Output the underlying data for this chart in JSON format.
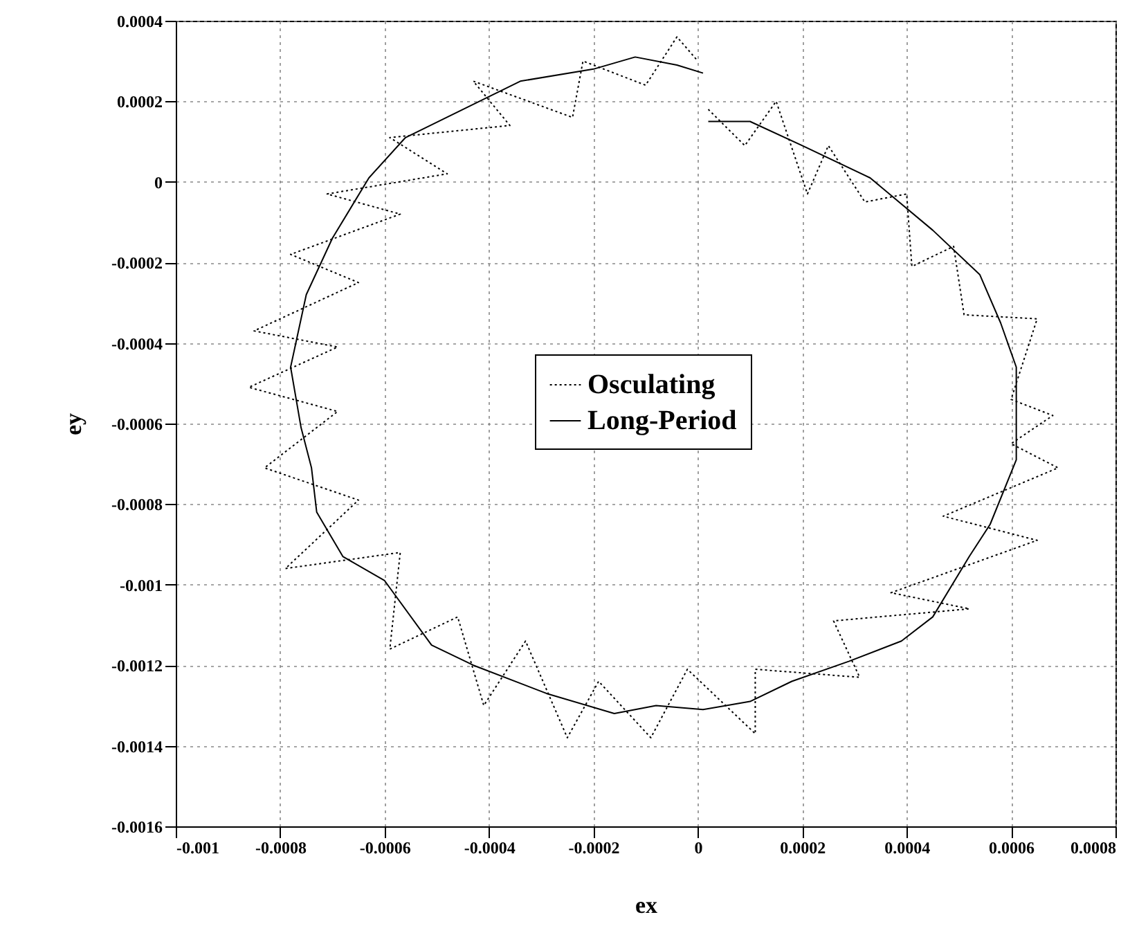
{
  "chart_data": {
    "type": "line",
    "xlabel": "ex",
    "ylabel": "ey",
    "xlim": [
      -0.001,
      0.0008
    ],
    "xticks": [
      -0.001,
      -0.0008,
      -0.0006,
      -0.0004,
      -0.0002,
      0,
      0.0002,
      0.0004,
      0.0006,
      0.0008
    ],
    "ylim": [
      -0.0016,
      0.0004
    ],
    "yticks": [
      -0.0016,
      -0.0014,
      -0.0012,
      -0.001,
      -0.0008,
      -0.0006,
      -0.0004,
      -0.0002,
      0,
      0.0002,
      0.0004
    ],
    "grid": true,
    "legend": "center",
    "marker": "none",
    "series": [
      {
        "name": "Osculating",
        "color": "#000000",
        "line_style": "dotted",
        "x": [
          2e-05,
          9e-05,
          0.00015,
          0.00021,
          0.00025,
          0.00032,
          0.0004,
          0.00041,
          0.00049,
          0.00051,
          0.00065,
          0.0006,
          0.00068,
          0.0006,
          0.00069,
          0.00047,
          0.00065,
          0.00037,
          0.00052,
          0.00026,
          0.00031,
          0.00011,
          0.00011,
          -2e-05,
          -9e-05,
          -0.00019,
          -0.00025,
          -0.00033,
          -0.00041,
          -0.00046,
          -0.00059,
          -0.00057,
          -0.00079,
          -0.00065,
          -0.00083,
          -0.00069,
          -0.00086,
          -0.00069,
          -0.00085,
          -0.00065,
          -0.00078,
          -0.00057,
          -0.00071,
          -0.00048,
          -0.00059,
          -0.00036,
          -0.00043,
          -0.00024,
          -0.00022,
          -0.0001,
          -4e-05,
          0
        ],
        "values": [
          0.00018,
          9e-05,
          0.0002,
          -3e-05,
          9e-05,
          -5e-05,
          -3e-05,
          -0.00021,
          -0.00016,
          -0.00033,
          -0.00034,
          -0.00054,
          -0.00058,
          -0.00065,
          -0.00071,
          -0.00083,
          -0.00089,
          -0.00102,
          -0.00106,
          -0.00109,
          -0.00123,
          -0.00121,
          -0.00137,
          -0.00121,
          -0.00138,
          -0.00124,
          -0.00138,
          -0.00114,
          -0.0013,
          -0.00108,
          -0.00116,
          -0.00092,
          -0.00096,
          -0.00079,
          -0.00071,
          -0.00057,
          -0.00051,
          -0.00041,
          -0.00037,
          -0.00025,
          -0.00018,
          -8e-05,
          -3e-05,
          2e-05,
          0.00011,
          0.00014,
          0.00025,
          0.00016,
          0.0003,
          0.00024,
          0.00036,
          0.0003
        ]
      },
      {
        "name": "Long-Period",
        "color": "#000000",
        "line_style": "solid",
        "x": [
          2e-05,
          0.0001,
          0.0002,
          0.00033,
          0.00045,
          0.00054,
          0.00058,
          0.00061,
          0.00061,
          0.00061,
          0.00056,
          0.00052,
          0.00045,
          0.00039,
          0.00029,
          0.00018,
          0.0001,
          1e-05,
          -8e-05,
          -0.00016,
          -0.00029,
          -0.00043,
          -0.00051,
          -0.0006,
          -0.00068,
          -0.00073,
          -0.00074,
          -0.00076,
          -0.00078,
          -0.00075,
          -0.0007,
          -0.00063,
          -0.00056,
          -0.00045,
          -0.00034,
          -0.0002,
          -0.00012,
          -4e-05,
          1e-05
        ],
        "values": [
          0.00015,
          0.00015,
          9e-05,
          1e-05,
          -0.00012,
          -0.00023,
          -0.00035,
          -0.00046,
          -0.00058,
          -0.00069,
          -0.00085,
          -0.00093,
          -0.00108,
          -0.00114,
          -0.00119,
          -0.00124,
          -0.00129,
          -0.00131,
          -0.0013,
          -0.00132,
          -0.00127,
          -0.0012,
          -0.00115,
          -0.00099,
          -0.00093,
          -0.00082,
          -0.00071,
          -0.00061,
          -0.00046,
          -0.00028,
          -0.00014,
          1e-05,
          0.00011,
          0.00018,
          0.00025,
          0.00028,
          0.00031,
          0.00029,
          0.00027
        ]
      }
    ]
  }
}
